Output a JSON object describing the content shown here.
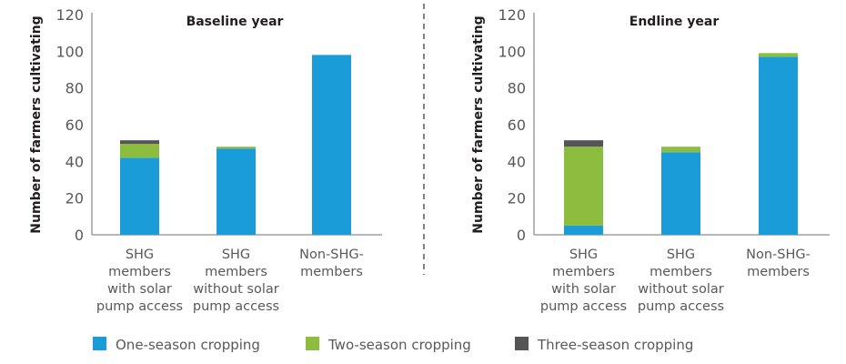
{
  "chart_data": [
    {
      "type": "bar",
      "stacked": true,
      "title": "Baseline year",
      "ylabel": "Number of farmers cultivating",
      "xlabel": "",
      "ylim": [
        0,
        120
      ],
      "yticks": [
        0,
        20,
        40,
        60,
        80,
        100,
        120
      ],
      "categories": [
        [
          "SHG",
          "members",
          "with solar",
          "pump access"
        ],
        [
          "SHG",
          "members",
          "without solar",
          "pump access"
        ],
        [
          "Non-SHG-",
          "members"
        ]
      ],
      "series": [
        {
          "name": "One-season cropping",
          "color": "#1a9cd8",
          "values": [
            42,
            47,
            98
          ]
        },
        {
          "name": "Two-season cropping",
          "color": "#8cbd3f",
          "values": [
            7.5,
            1,
            0
          ]
        },
        {
          "name": "Three-season cropping",
          "color": "#555557",
          "values": [
            2,
            0,
            0
          ]
        }
      ]
    },
    {
      "type": "bar",
      "stacked": true,
      "title": "Endline year",
      "ylabel": "Number of farmers cultivating",
      "xlabel": "",
      "ylim": [
        0,
        120
      ],
      "yticks": [
        0,
        20,
        40,
        60,
        80,
        100,
        120
      ],
      "categories": [
        [
          "SHG",
          "members",
          "with solar",
          "pump access"
        ],
        [
          "SHG",
          "members",
          "without solar",
          "pump access"
        ],
        [
          "Non-SHG-",
          "members"
        ]
      ],
      "series": [
        {
          "name": "One-season cropping",
          "color": "#1a9cd8",
          "values": [
            5,
            45,
            97
          ]
        },
        {
          "name": "Two-season cropping",
          "color": "#8cbd3f",
          "values": [
            43,
            3,
            2
          ]
        },
        {
          "name": "Three-season cropping",
          "color": "#555557",
          "values": [
            3.5,
            0,
            0
          ]
        }
      ]
    }
  ],
  "legend": {
    "placement": "bottom",
    "items": [
      {
        "label": "One-season cropping",
        "color": "#1a9cd8"
      },
      {
        "label": "Two-season cropping",
        "color": "#8cbd3f"
      },
      {
        "label": "Three-season cropping",
        "color": "#555557"
      }
    ]
  }
}
